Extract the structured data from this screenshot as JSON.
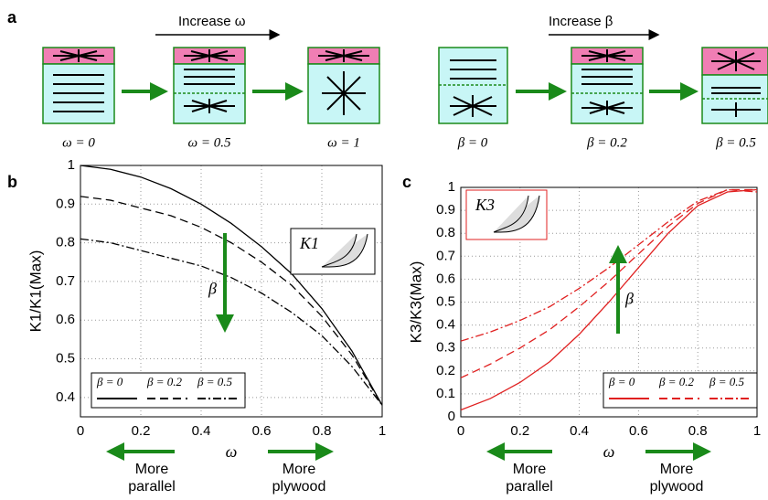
{
  "panel_labels": [
    "a",
    "b",
    "c"
  ],
  "schematic": {
    "increase_left": "Increase ω",
    "increase_right": "Increase β",
    "labels": [
      "ω = 0",
      "ω = 0.5",
      "ω = 1",
      "β = 0",
      "β = 0.2",
      "β = 0.5"
    ]
  },
  "chart_data": [
    {
      "type": "line",
      "xlabel": "ω",
      "ylabel": "K1/K1(Max)",
      "inset_label": "K1",
      "arrow_label": "β",
      "x": [
        0,
        0.1,
        0.2,
        0.3,
        0.4,
        0.5,
        0.6,
        0.7,
        0.8,
        0.9,
        1
      ],
      "xlim": [
        0,
        1
      ],
      "xticks": [
        0,
        0.2,
        0.4,
        0.6,
        0.8,
        1
      ],
      "ylim": [
        0.35,
        1
      ],
      "yticks": [
        0.4,
        0.5,
        0.6,
        0.7,
        0.8,
        0.9,
        1
      ],
      "grid": true,
      "legend": "lower left",
      "series": [
        {
          "name": "β = 0",
          "color": "#000000",
          "dash": "solid",
          "values": [
            1.0,
            0.99,
            0.97,
            0.94,
            0.9,
            0.85,
            0.79,
            0.72,
            0.63,
            0.52,
            0.38
          ]
        },
        {
          "name": "β = 0.2",
          "color": "#000000",
          "dash": "dashed",
          "values": [
            0.92,
            0.91,
            0.89,
            0.87,
            0.84,
            0.8,
            0.75,
            0.69,
            0.61,
            0.51,
            0.38
          ]
        },
        {
          "name": "β = 0.5",
          "color": "#000000",
          "dash": "dashdot",
          "values": [
            0.81,
            0.8,
            0.78,
            0.76,
            0.74,
            0.71,
            0.67,
            0.62,
            0.56,
            0.48,
            0.38
          ]
        }
      ],
      "left_note": [
        "More",
        "parallel"
      ],
      "right_note": [
        "More",
        "plywood"
      ]
    },
    {
      "type": "line",
      "xlabel": "ω",
      "ylabel": "K3/K3(Max)",
      "inset_label": "K3",
      "arrow_label": "β",
      "x": [
        0,
        0.1,
        0.2,
        0.3,
        0.4,
        0.5,
        0.6,
        0.7,
        0.8,
        0.9,
        1
      ],
      "xlim": [
        0,
        1
      ],
      "xticks": [
        0,
        0.2,
        0.4,
        0.6,
        0.8,
        1
      ],
      "ylim": [
        0,
        1
      ],
      "yticks": [
        0,
        0.1,
        0.2,
        0.3,
        0.4,
        0.5,
        0.6,
        0.7,
        0.8,
        0.9,
        1
      ],
      "grid": true,
      "legend": "lower right",
      "series": [
        {
          "name": "β = 0",
          "color": "#e02020",
          "dash": "solid",
          "values": [
            0.03,
            0.08,
            0.15,
            0.24,
            0.36,
            0.5,
            0.65,
            0.8,
            0.92,
            0.98,
            0.99
          ]
        },
        {
          "name": "β = 0.2",
          "color": "#e02020",
          "dash": "dashed",
          "values": [
            0.17,
            0.23,
            0.3,
            0.38,
            0.48,
            0.59,
            0.71,
            0.83,
            0.93,
            0.99,
            0.99
          ]
        },
        {
          "name": "β = 0.5",
          "color": "#e02020",
          "dash": "dashdot",
          "values": [
            0.33,
            0.37,
            0.42,
            0.48,
            0.56,
            0.65,
            0.75,
            0.85,
            0.94,
            0.99,
            0.98
          ]
        }
      ],
      "left_note": [
        "More",
        "parallel"
      ],
      "right_note": [
        "More",
        "plywood"
      ]
    }
  ]
}
